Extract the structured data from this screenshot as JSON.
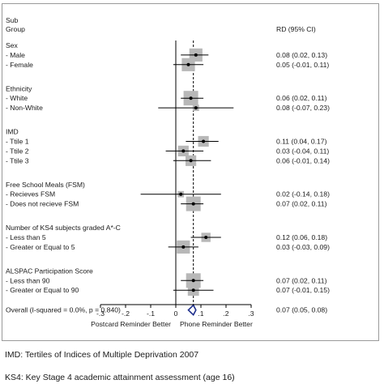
{
  "chart_data": {
    "type": "forest",
    "header": {
      "subgroup_line1": "Sub",
      "subgroup_line2": "Group",
      "effect_col": "RD (95% CI)"
    },
    "xlim": [
      -0.3,
      0.3
    ],
    "null_line": 0,
    "overall_line": 0.07,
    "xticks": [
      {
        "value": -0.3,
        "label": "-.3"
      },
      {
        "value": -0.2,
        "label": "-.2"
      },
      {
        "value": -0.1,
        "label": "-.1"
      },
      {
        "value": 0,
        "label": "0"
      },
      {
        "value": 0.1,
        "label": ".1"
      },
      {
        "value": 0.2,
        "label": ".2"
      },
      {
        "value": 0.3,
        "label": ".3"
      }
    ],
    "xlabel_left": "Postcard Reminder Better",
    "xlabel_right": "Phone Reminder Better",
    "groups": [
      {
        "title": "Sex",
        "rows": [
          {
            "label": "- Male",
            "est": 0.08,
            "lo": 0.02,
            "hi": 0.13,
            "ci": "0.08 (0.02, 0.13)",
            "weight": 0.85
          },
          {
            "label": "- Female",
            "est": 0.05,
            "lo": -0.01,
            "hi": 0.11,
            "ci": "0.05 (-0.01, 0.11)",
            "weight": 0.85
          }
        ]
      },
      {
        "title": "Ethnicity",
        "rows": [
          {
            "label": "- White",
            "est": 0.06,
            "lo": 0.02,
            "hi": 0.11,
            "ci": "0.06 (0.02, 0.11)",
            "weight": 1.0
          },
          {
            "label": "- Non-White",
            "est": 0.08,
            "lo": -0.07,
            "hi": 0.23,
            "ci": "0.08 (-0.07, 0.23)",
            "weight": 0.15
          }
        ]
      },
      {
        "title": "IMD",
        "rows": [
          {
            "label": "- Ttile 1",
            "est": 0.11,
            "lo": 0.04,
            "hi": 0.17,
            "ci": "0.11 (0.04, 0.17)",
            "weight": 0.6
          },
          {
            "label": "- Ttile 2",
            "est": 0.03,
            "lo": -0.04,
            "hi": 0.11,
            "ci": "0.03 (-0.04, 0.11)",
            "weight": 0.6
          },
          {
            "label": "- Ttile 3",
            "est": 0.06,
            "lo": -0.01,
            "hi": 0.14,
            "ci": "0.06 (-0.01, 0.14)",
            "weight": 0.6
          }
        ]
      },
      {
        "title": "Free School Meals (FSM)",
        "rows": [
          {
            "label": "- Recieves FSM",
            "est": 0.02,
            "lo": -0.14,
            "hi": 0.18,
            "ci": "0.02 (-0.14, 0.18)",
            "weight": 0.15
          },
          {
            "label": "- Does not recieve FSM",
            "est": 0.07,
            "lo": 0.02,
            "hi": 0.11,
            "ci": "0.07 (0.02, 0.11)",
            "weight": 1.0
          }
        ]
      },
      {
        "title": "Number of KS4 subjects graded A*-C",
        "rows": [
          {
            "label": "- Less than 5",
            "est": 0.12,
            "lo": 0.06,
            "hi": 0.18,
            "ci": "0.12 (0.06, 0.18)",
            "weight": 0.45
          },
          {
            "label": "- Greater or Equal to 5",
            "est": 0.03,
            "lo": -0.03,
            "hi": 0.09,
            "ci": "0.03 (-0.03, 0.09)",
            "weight": 0.85
          }
        ]
      },
      {
        "title": "ALSPAC Participation Score",
        "rows": [
          {
            "label": "- Less than 90",
            "est": 0.07,
            "lo": 0.02,
            "hi": 0.11,
            "ci": "0.07 (0.02, 0.11)",
            "weight": 1.0
          },
          {
            "label": "- Greater or Equal to 90",
            "est": 0.07,
            "lo": -0.01,
            "hi": 0.15,
            "ci": "0.07 (-0.01, 0.15)",
            "weight": 0.65
          }
        ]
      }
    ],
    "overall": {
      "label": "Overall  (I-squared = 0.0%, p = 0.840)",
      "est": 0.07,
      "lo": 0.05,
      "hi": 0.08,
      "ci": "0.07 (0.05, 0.08)"
    },
    "colors": {
      "box": "#b8b8b8",
      "line": "#000000",
      "diamond": "#1f2f8c",
      "frame": "#9a9a9a"
    }
  },
  "footnotes": [
    "IMD: Tertiles of Indices of Multiple Deprivation 2007",
    "KS4: Key Stage 4 academic attainment assessment (age 16)"
  ]
}
